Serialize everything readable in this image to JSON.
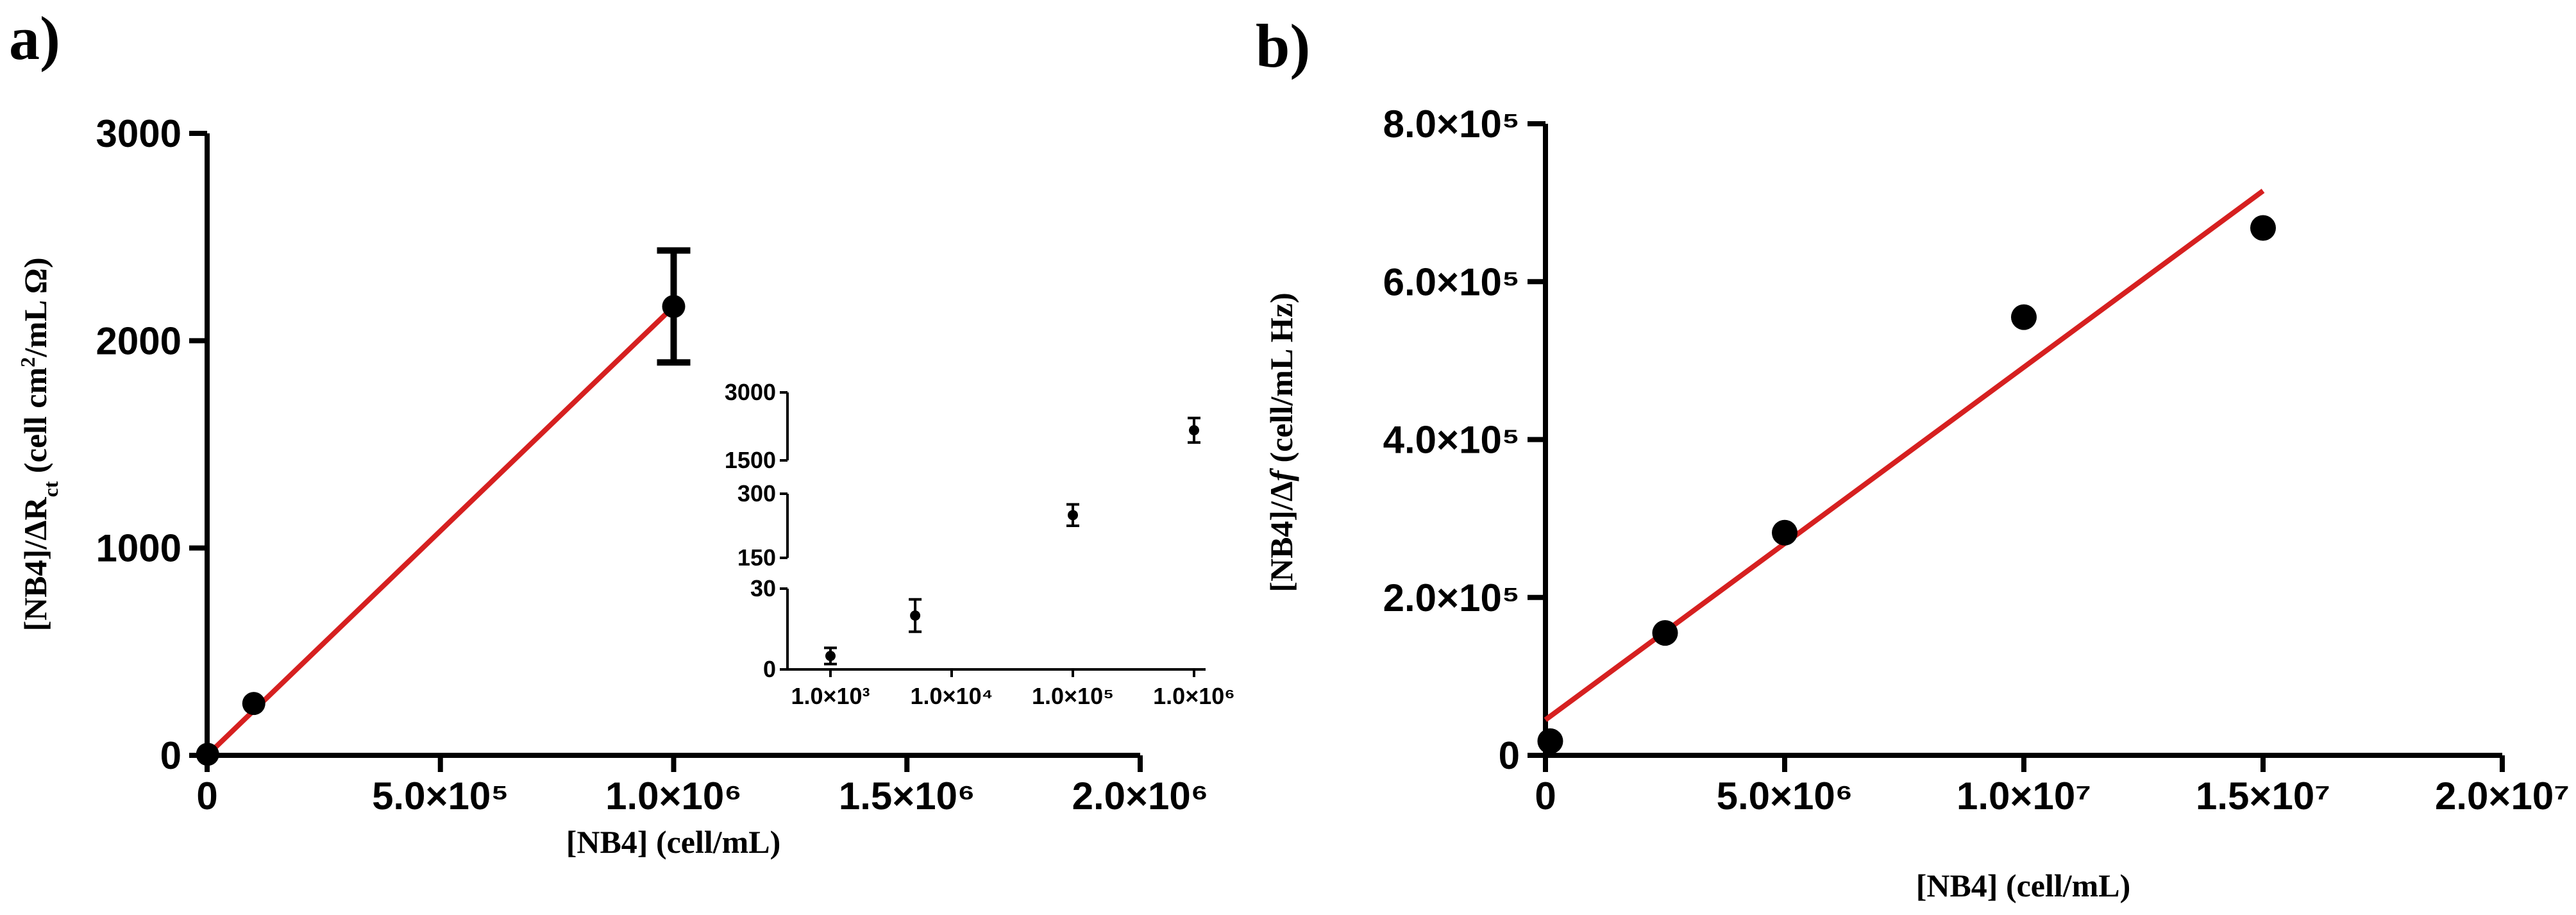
{
  "panels": {
    "a": {
      "letter": "a)"
    },
    "b": {
      "letter": "b)"
    }
  },
  "chart_data": [
    {
      "id": "a",
      "type": "scatter",
      "title": "",
      "xlabel": "[NB4] (cell/mL)",
      "ylabel_main": "[NB4]/ΔR",
      "ylabel_sub": "ct",
      "ylabel_rest": "(cell cm",
      "ylabel_sup": "2",
      "ylabel_end": "/mL Ω)",
      "xlim": [
        0,
        2000000
      ],
      "ylim": [
        0,
        3000
      ],
      "xticks": [
        0,
        500000,
        1000000,
        1500000,
        2000000
      ],
      "xtick_labels": [
        "0",
        "5.0×10⁵",
        "1.0×10⁶",
        "1.5×10⁶",
        "2.0×10⁶"
      ],
      "yticks": [
        0,
        1000,
        2000,
        3000
      ],
      "ytick_labels": [
        "0",
        "1000",
        "2000",
        "3000"
      ],
      "series": [
        {
          "name": "data",
          "x": [
            1000,
            100000,
            1000000
          ],
          "y": [
            5,
            250,
            2165
          ],
          "yerr": [
            0,
            0,
            270
          ]
        }
      ],
      "fit": {
        "x": [
          0,
          1000000
        ],
        "y": [
          0,
          2165
        ],
        "color": "#d62020"
      },
      "inset": {
        "xscale": "log",
        "xticks": [
          1000,
          10000,
          100000,
          1000000
        ],
        "xtick_labels": [
          "1.0×10³",
          "1.0×10⁴",
          "1.0×10⁵",
          "1.0×10⁶"
        ],
        "ytick_labels_bottom": [
          "0",
          "30"
        ],
        "ytick_labels_mid": [
          "150",
          "300"
        ],
        "ytick_labels_top": [
          "1500",
          "3000"
        ],
        "points": [
          {
            "x": 1000,
            "y": 5,
            "yerr": 3
          },
          {
            "x": 5000,
            "y": 20,
            "yerr": 6
          },
          {
            "x": 100000,
            "y": 250,
            "yerr": 25
          },
          {
            "x": 1000000,
            "y": 2165,
            "yerr": 270
          }
        ]
      }
    },
    {
      "id": "b",
      "type": "scatter",
      "title": "",
      "xlabel": "[NB4] (cell/mL)",
      "ylabel_main": "[NB4]/Δ",
      "ylabel_italic": "f",
      "ylabel_rest": "(cell/mL Hz)",
      "xlim": [
        0,
        20000000
      ],
      "ylim": [
        0,
        800000
      ],
      "xticks": [
        0,
        5000000,
        10000000,
        15000000,
        20000000
      ],
      "xtick_labels": [
        "0",
        "5.0×10⁶",
        "1.0×10⁷",
        "1.5×10⁷",
        "2.0×10⁷"
      ],
      "yticks": [
        0,
        200000,
        400000,
        600000,
        800000
      ],
      "ytick_labels": [
        "0",
        "2.0×10⁵",
        "4.0×10⁵",
        "6.0×10⁵",
        "8.0×10⁵"
      ],
      "series": [
        {
          "name": "data",
          "x": [
            100000,
            2500000,
            5000000,
            10000000,
            15000000
          ],
          "y": [
            18000,
            155000,
            282000,
            555000,
            668000
          ]
        }
      ],
      "fit": {
        "x": [
          0,
          15000000
        ],
        "y": [
          45000,
          715000
        ],
        "color": "#d62020"
      }
    }
  ]
}
